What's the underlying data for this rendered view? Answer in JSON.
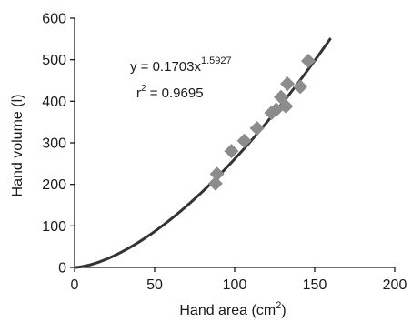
{
  "chart_data": {
    "type": "scatter",
    "xlabel": "Hand area (cm",
    "xlabel_sup": "2",
    "xlabel_close": ")",
    "ylabel": "Hand volume (l)",
    "xlim": [
      0,
      200
    ],
    "ylim": [
      0,
      600
    ],
    "x_ticks": [
      0,
      50,
      100,
      150,
      200
    ],
    "y_ticks": [
      0,
      100,
      200,
      300,
      400,
      500,
      600
    ],
    "grid": false,
    "marker_color": "#8c8c8c",
    "line_color": "#333333",
    "points": [
      {
        "x": 88,
        "y": 202
      },
      {
        "x": 89,
        "y": 225
      },
      {
        "x": 98,
        "y": 280
      },
      {
        "x": 106,
        "y": 305
      },
      {
        "x": 114,
        "y": 335
      },
      {
        "x": 123,
        "y": 372
      },
      {
        "x": 126,
        "y": 380
      },
      {
        "x": 129,
        "y": 410
      },
      {
        "x": 132,
        "y": 388
      },
      {
        "x": 133,
        "y": 442
      },
      {
        "x": 141,
        "y": 435
      },
      {
        "x": 146,
        "y": 497
      }
    ],
    "fit": {
      "model": "power",
      "a": 0.1703,
      "b": 1.5927,
      "x_range": [
        0,
        160
      ],
      "equation_base": "y = 0.1703x",
      "equation_exp": "1.5927",
      "r2_base": "r",
      "r2_sup": "2",
      "r2_value": " = 0.9695"
    }
  }
}
